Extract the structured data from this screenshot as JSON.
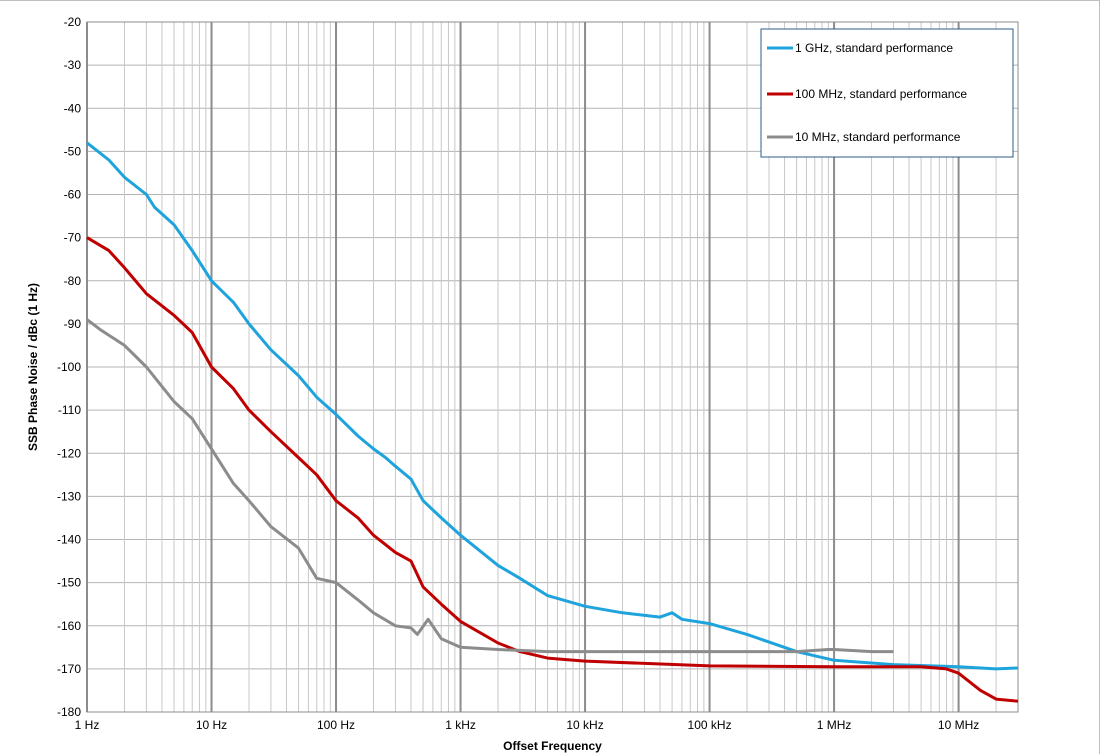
{
  "chart_data": {
    "type": "line",
    "xlabel": "Offset Frequency",
    "ylabel": "SSB Phase Noise / dBc (1 Hz)",
    "x_scale": "log",
    "xlim": [
      1,
      30000000
    ],
    "ylim": [
      -180,
      -20
    ],
    "x_ticks": [
      {
        "value": 1,
        "label": "1 Hz"
      },
      {
        "value": 10,
        "label": "10 Hz"
      },
      {
        "value": 100,
        "label": "100 Hz"
      },
      {
        "value": 1000,
        "label": "1 kHz"
      },
      {
        "value": 10000,
        "label": "10 kHz"
      },
      {
        "value": 100000,
        "label": "100 kHz"
      },
      {
        "value": 1000000,
        "label": "1 MHz"
      },
      {
        "value": 10000000,
        "label": "10 MHz"
      }
    ],
    "y_ticks": [
      -20,
      -30,
      -40,
      -50,
      -60,
      -70,
      -80,
      -90,
      -100,
      -110,
      -120,
      -130,
      -140,
      -150,
      -160,
      -170,
      -180
    ],
    "grid": true,
    "legend_position": "top-right",
    "series": [
      {
        "name": "1 GHz, standard performance",
        "color": "#1ea3dc",
        "points": [
          [
            1,
            -48
          ],
          [
            1.5,
            -52
          ],
          [
            2,
            -56
          ],
          [
            3,
            -60
          ],
          [
            3.5,
            -63
          ],
          [
            5,
            -67
          ],
          [
            7,
            -73
          ],
          [
            10,
            -80
          ],
          [
            15,
            -85
          ],
          [
            20,
            -90
          ],
          [
            30,
            -96
          ],
          [
            50,
            -102
          ],
          [
            70,
            -107
          ],
          [
            100,
            -111
          ],
          [
            150,
            -116
          ],
          [
            200,
            -119
          ],
          [
            250,
            -121
          ],
          [
            300,
            -123
          ],
          [
            400,
            -126
          ],
          [
            500,
            -131
          ],
          [
            700,
            -135
          ],
          [
            1000,
            -139
          ],
          [
            2000,
            -146
          ],
          [
            3000,
            -149
          ],
          [
            5000,
            -153
          ],
          [
            10000,
            -155.5
          ],
          [
            20000,
            -157
          ],
          [
            40000,
            -158
          ],
          [
            50000,
            -157
          ],
          [
            60000,
            -158.5
          ],
          [
            100000,
            -159.5
          ],
          [
            200000,
            -162
          ],
          [
            500000,
            -166
          ],
          [
            1000000,
            -168
          ],
          [
            3000000,
            -169
          ],
          [
            10000000,
            -169.5
          ],
          [
            20000000,
            -170
          ],
          [
            30000000,
            -169.8
          ]
        ]
      },
      {
        "name": "100 MHz, standard performance",
        "color": "#c00000",
        "points": [
          [
            1,
            -70
          ],
          [
            1.5,
            -73
          ],
          [
            2,
            -77
          ],
          [
            3,
            -83
          ],
          [
            5,
            -88
          ],
          [
            7,
            -92
          ],
          [
            10,
            -100
          ],
          [
            15,
            -105
          ],
          [
            20,
            -110
          ],
          [
            30,
            -115
          ],
          [
            50,
            -121
          ],
          [
            70,
            -125
          ],
          [
            100,
            -131
          ],
          [
            150,
            -135
          ],
          [
            200,
            -139
          ],
          [
            300,
            -143
          ],
          [
            400,
            -145
          ],
          [
            500,
            -151
          ],
          [
            700,
            -155
          ],
          [
            1000,
            -159
          ],
          [
            2000,
            -164
          ],
          [
            3000,
            -166
          ],
          [
            5000,
            -167.5
          ],
          [
            10000,
            -168.2
          ],
          [
            100000,
            -169.3
          ],
          [
            1000000,
            -169.5
          ],
          [
            5000000,
            -169.5
          ],
          [
            8000000,
            -170
          ],
          [
            10000000,
            -171
          ],
          [
            15000000,
            -175
          ],
          [
            20000000,
            -177
          ],
          [
            30000000,
            -177.5
          ]
        ]
      },
      {
        "name": "10 MHz, standard performance",
        "color": "#8c8c8c",
        "points": [
          [
            1,
            -89
          ],
          [
            1.3,
            -91.5
          ],
          [
            2,
            -95
          ],
          [
            3,
            -100
          ],
          [
            5,
            -108
          ],
          [
            7,
            -112
          ],
          [
            10,
            -119
          ],
          [
            15,
            -127
          ],
          [
            20,
            -131
          ],
          [
            30,
            -137
          ],
          [
            50,
            -142
          ],
          [
            70,
            -149
          ],
          [
            100,
            -150
          ],
          [
            150,
            -154
          ],
          [
            200,
            -157
          ],
          [
            300,
            -160
          ],
          [
            400,
            -160.5
          ],
          [
            450,
            -162
          ],
          [
            550,
            -158.5
          ],
          [
            700,
            -163
          ],
          [
            1000,
            -165
          ],
          [
            2000,
            -165.5
          ],
          [
            5000,
            -166
          ],
          [
            100000,
            -166
          ],
          [
            500000,
            -166
          ],
          [
            900000,
            -165.5
          ],
          [
            1000000,
            -165.5
          ],
          [
            2000000,
            -166
          ],
          [
            3000000,
            -166
          ]
        ]
      }
    ]
  }
}
